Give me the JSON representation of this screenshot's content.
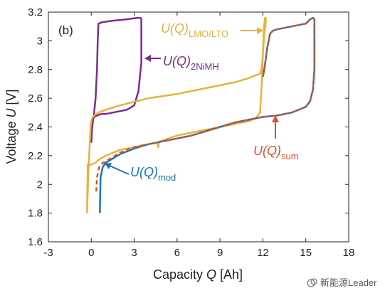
{
  "chart_data": {
    "type": "line",
    "panel_label": "(b)",
    "xlabel": {
      "prefix": "Capacity ",
      "var": "Q",
      "suffix": " [Ah]"
    },
    "ylabel": {
      "prefix": "Voltage ",
      "var": "U",
      "suffix": " [V]"
    },
    "xlim": [
      -3,
      18
    ],
    "ylim": [
      1.6,
      3.2
    ],
    "xticks": [
      "-3",
      "0",
      "3",
      "6",
      "9",
      "12",
      "15",
      "18"
    ],
    "yticks": [
      "1.6",
      "1.8",
      "2",
      "2.2",
      "2.4",
      "2.6",
      "2.8",
      "3",
      "3.2"
    ],
    "grid": false,
    "colors": {
      "nimh": "#7B2D8E",
      "lmo": "#E8B23A",
      "mod": "#1B75BB",
      "sum": "#D9532B"
    },
    "annotations": {
      "lmo": {
        "main": "U(Q)",
        "sub": "LMO/LTO"
      },
      "nimh": {
        "main": "U(Q)",
        "sub": "2NiMH"
      },
      "sum": {
        "main": "U(Q)",
        "sub": "sum"
      },
      "mod": {
        "main": "U(Q)",
        "sub": "mod"
      }
    },
    "series": [
      {
        "key": "nimh",
        "x": [
          0.0,
          0.02,
          0.05,
          0.1,
          0.2,
          0.4,
          0.7,
          1.0,
          1.5,
          2.0,
          2.5,
          3.0,
          3.3,
          3.5,
          3.5,
          3.45,
          3.2,
          2.5,
          1.5,
          0.8,
          0.5,
          0.45,
          0.4,
          0.35,
          0.3,
          0.2,
          0.1,
          0.05,
          0.0
        ],
        "y": [
          2.29,
          2.38,
          2.42,
          2.45,
          2.47,
          2.48,
          2.49,
          2.49,
          2.5,
          2.51,
          2.52,
          2.55,
          2.65,
          2.85,
          3.15,
          3.16,
          3.16,
          3.15,
          3.14,
          3.13,
          3.12,
          3.0,
          2.8,
          2.7,
          2.6,
          2.5,
          2.43,
          2.38,
          2.29
        ]
      },
      {
        "key": "lmo",
        "x": [
          -0.3,
          -0.25,
          -0.2,
          0.0,
          0.3,
          0.5,
          1.0,
          2.0,
          3.0,
          4.0,
          4.6,
          4.68,
          4.72,
          4.8,
          6.0,
          8.0,
          10.0,
          11.0,
          11.5,
          11.8,
          11.95,
          12.05,
          12.1,
          12.15,
          12.2,
          12.2,
          12.1,
          12.0,
          11.9,
          11.8,
          11.5,
          11.0,
          10.0,
          8.0,
          6.0,
          4.0,
          2.0,
          1.0,
          0.5,
          0.2,
          0.05,
          0.0,
          -0.05,
          -0.1,
          -0.2,
          -0.25,
          -0.3
        ],
        "y": [
          1.8,
          2.14,
          2.13,
          2.14,
          2.15,
          2.17,
          2.2,
          2.24,
          2.26,
          2.28,
          2.29,
          2.26,
          2.29,
          2.3,
          2.34,
          2.38,
          2.42,
          2.44,
          2.46,
          2.5,
          2.75,
          3.05,
          3.12,
          3.16,
          3.16,
          3.12,
          3.05,
          2.9,
          2.8,
          2.77,
          2.76,
          2.74,
          2.71,
          2.67,
          2.63,
          2.6,
          2.55,
          2.52,
          2.5,
          2.48,
          2.46,
          2.44,
          2.4,
          2.3,
          2.1,
          1.95,
          1.8
        ]
      },
      {
        "key": "mod",
        "x": [
          0.6,
          0.65,
          0.8,
          1.0,
          1.5,
          2.0,
          3.0,
          4.0,
          5.0,
          6.0,
          7.0,
          8.0,
          9.0,
          10.0,
          11.0,
          12.0,
          13.0,
          14.0,
          14.5,
          15.0,
          15.3,
          15.5,
          15.6,
          15.6,
          15.5,
          15.3,
          15.0,
          14.5,
          14.0,
          13.5,
          13.0,
          12.7,
          12.5,
          12.3,
          12.1,
          12.0
        ],
        "y": [
          1.8,
          2.05,
          2.12,
          2.15,
          2.18,
          2.21,
          2.25,
          2.28,
          2.3,
          2.32,
          2.34,
          2.37,
          2.4,
          2.43,
          2.45,
          2.47,
          2.48,
          2.5,
          2.52,
          2.54,
          2.58,
          2.66,
          2.8,
          3.15,
          3.16,
          3.15,
          3.12,
          3.11,
          3.1,
          3.09,
          3.08,
          3.07,
          3.05,
          2.95,
          2.8,
          2.75
        ]
      },
      {
        "key": "sum",
        "x": [
          0.35,
          0.4,
          0.55,
          0.8,
          1.0,
          1.5,
          2.0,
          3.0,
          4.0,
          5.0,
          6.0,
          7.0,
          8.0,
          9.0,
          10.0,
          11.0,
          12.0,
          13.0,
          14.0,
          14.5,
          15.0,
          15.3,
          15.5,
          15.6,
          15.6,
          15.5,
          15.3,
          15.0,
          14.5,
          14.0,
          13.5,
          13.0,
          12.7,
          12.5,
          12.3,
          12.1,
          12.0
        ],
        "y": [
          1.95,
          2.05,
          2.12,
          2.15,
          2.16,
          2.19,
          2.22,
          2.26,
          2.28,
          2.3,
          2.32,
          2.34,
          2.37,
          2.4,
          2.43,
          2.45,
          2.47,
          2.48,
          2.5,
          2.52,
          2.54,
          2.58,
          2.66,
          2.8,
          3.15,
          3.16,
          3.15,
          3.12,
          3.11,
          3.1,
          3.09,
          3.08,
          3.07,
          3.05,
          2.95,
          2.8,
          2.75
        ]
      }
    ]
  },
  "watermark": "新能源Leader"
}
